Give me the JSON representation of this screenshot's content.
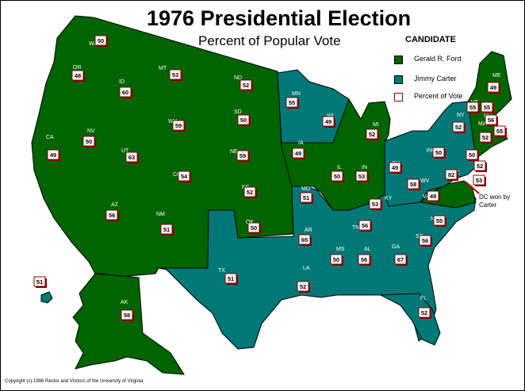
{
  "title": "1976 Presidential Election",
  "subtitle": "Percent of Popular Vote",
  "legend": {
    "title": "CANDIDATE",
    "items": [
      {
        "label": "Gerald R. Ford",
        "color": "#006400"
      },
      {
        "label": "Jimmy Carter",
        "color": "#007878"
      },
      {
        "label": "Percent of Vote",
        "color": "#ffffff"
      }
    ]
  },
  "colors": {
    "ford": "#006400",
    "carter": "#007878",
    "border": "#000000",
    "badge_border": "#8b0000"
  },
  "dc_note": [
    "DC won by",
    "Carter"
  ],
  "copyright": "Copyright (c) 1996 Rector and Visitors of the University of Virginia",
  "states": [
    {
      "abbr": "WA",
      "winner": "ford",
      "percent": "50"
    },
    {
      "abbr": "OR",
      "winner": "ford",
      "percent": "48"
    },
    {
      "abbr": "CA",
      "winner": "ford",
      "percent": "49"
    },
    {
      "abbr": "ID",
      "winner": "ford",
      "percent": "60"
    },
    {
      "abbr": "NV",
      "winner": "ford",
      "percent": "50"
    },
    {
      "abbr": "MT",
      "winner": "ford",
      "percent": "53"
    },
    {
      "abbr": "WY",
      "winner": "ford",
      "percent": "59"
    },
    {
      "abbr": "UT",
      "winner": "ford",
      "percent": "63"
    },
    {
      "abbr": "AZ",
      "winner": "ford",
      "percent": "56"
    },
    {
      "abbr": "CO",
      "winner": "ford",
      "percent": "54"
    },
    {
      "abbr": "NM",
      "winner": "ford",
      "percent": "51"
    },
    {
      "abbr": "ND",
      "winner": "ford",
      "percent": "52"
    },
    {
      "abbr": "SD",
      "winner": "ford",
      "percent": "50"
    },
    {
      "abbr": "NE",
      "winner": "ford",
      "percent": "59"
    },
    {
      "abbr": "KS",
      "winner": "ford",
      "percent": "52"
    },
    {
      "abbr": "OK",
      "winner": "ford",
      "percent": "50"
    },
    {
      "abbr": "TX",
      "winner": "carter",
      "percent": "51"
    },
    {
      "abbr": "MN",
      "winner": "carter",
      "percent": "55"
    },
    {
      "abbr": "IA",
      "winner": "ford",
      "percent": "49"
    },
    {
      "abbr": "MO",
      "winner": "carter",
      "percent": "51"
    },
    {
      "abbr": "AR",
      "winner": "carter",
      "percent": "65"
    },
    {
      "abbr": "LA",
      "winner": "carter",
      "percent": "52"
    },
    {
      "abbr": "WI",
      "winner": "carter",
      "percent": "49"
    },
    {
      "abbr": "IL",
      "winner": "ford",
      "percent": "50"
    },
    {
      "abbr": "MI",
      "winner": "ford",
      "percent": "52"
    },
    {
      "abbr": "IN",
      "winner": "ford",
      "percent": "53"
    },
    {
      "abbr": "OH",
      "winner": "carter",
      "percent": "49"
    },
    {
      "abbr": "KY",
      "winner": "carter",
      "percent": "53"
    },
    {
      "abbr": "TN",
      "winner": "carter",
      "percent": "56"
    },
    {
      "abbr": "MS",
      "winner": "carter",
      "percent": "50"
    },
    {
      "abbr": "AL",
      "winner": "carter",
      "percent": "56"
    },
    {
      "abbr": "GA",
      "winner": "carter",
      "percent": "67"
    },
    {
      "abbr": "FL",
      "winner": "carter",
      "percent": "52"
    },
    {
      "abbr": "SC",
      "winner": "carter",
      "percent": "56"
    },
    {
      "abbr": "NC",
      "winner": "carter",
      "percent": "55"
    },
    {
      "abbr": "VA",
      "winner": "ford",
      "percent": "49"
    },
    {
      "abbr": "WV",
      "winner": "carter",
      "percent": "58"
    },
    {
      "abbr": "PA",
      "winner": "carter",
      "percent": "50"
    },
    {
      "abbr": "NY",
      "winner": "carter",
      "percent": "52"
    },
    {
      "abbr": "VT",
      "winner": "ford",
      "percent": "55"
    },
    {
      "abbr": "NH",
      "winner": "ford",
      "percent": "55"
    },
    {
      "abbr": "ME",
      "winner": "ford",
      "percent": "49"
    },
    {
      "abbr": "MA",
      "winner": "carter",
      "percent": "56"
    },
    {
      "abbr": "RI",
      "winner": "carter",
      "percent": "55"
    },
    {
      "abbr": "CT",
      "winner": "ford",
      "percent": "52"
    },
    {
      "abbr": "NJ",
      "winner": "ford",
      "percent": "50"
    },
    {
      "abbr": "DE",
      "winner": "carter",
      "percent": "52"
    },
    {
      "abbr": "MD",
      "winner": "carter",
      "percent": "53"
    },
    {
      "abbr": "DC",
      "winner": "carter",
      "percent": "82"
    },
    {
      "abbr": "HI",
      "winner": "carter",
      "percent": "51"
    },
    {
      "abbr": "AK",
      "winner": "ford",
      "percent": "58"
    }
  ]
}
